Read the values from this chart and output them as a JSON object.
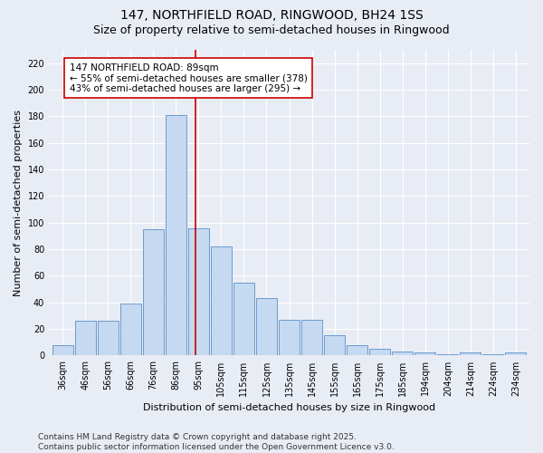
{
  "title": "147, NORTHFIELD ROAD, RINGWOOD, BH24 1SS",
  "subtitle": "Size of property relative to semi-detached houses in Ringwood",
  "xlabel": "Distribution of semi-detached houses by size in Ringwood",
  "ylabel": "Number of semi-detached properties",
  "categories": [
    "36sqm",
    "46sqm",
    "56sqm",
    "66sqm",
    "76sqm",
    "86sqm",
    "95sqm",
    "105sqm",
    "115sqm",
    "125sqm",
    "135sqm",
    "145sqm",
    "155sqm",
    "165sqm",
    "175sqm",
    "185sqm",
    "194sqm",
    "204sqm",
    "214sqm",
    "224sqm",
    "234sqm"
  ],
  "values": [
    8,
    26,
    26,
    39,
    95,
    181,
    96,
    82,
    55,
    43,
    27,
    27,
    15,
    8,
    5,
    3,
    2,
    1,
    2,
    1,
    2
  ],
  "bar_color": "#c5d9f0",
  "bar_edge_color": "#5b8fc9",
  "vline_x": 5.85,
  "vline_color": "#cc0000",
  "annotation_text": "147 NORTHFIELD ROAD: 89sqm\n← 55% of semi-detached houses are smaller (378)\n43% of semi-detached houses are larger (295) →",
  "annotation_box_facecolor": "#ffffff",
  "annotation_box_edgecolor": "#cc0000",
  "ylim": [
    0,
    230
  ],
  "yticks": [
    0,
    20,
    40,
    60,
    80,
    100,
    120,
    140,
    160,
    180,
    200,
    220
  ],
  "footer": "Contains HM Land Registry data © Crown copyright and database right 2025.\nContains public sector information licensed under the Open Government Licence v3.0.",
  "bg_color": "#e8edf5",
  "plot_bg_color": "#e8edf5",
  "grid_color": "#ffffff",
  "title_fontsize": 10,
  "subtitle_fontsize": 9,
  "axis_label_fontsize": 8,
  "tick_fontsize": 7,
  "annot_fontsize": 7.5,
  "footer_fontsize": 6.5
}
